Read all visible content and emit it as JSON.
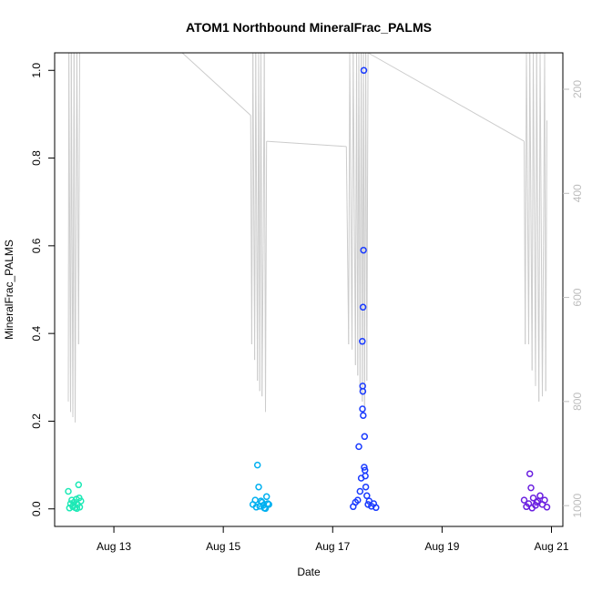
{
  "chart_data": {
    "type": "scatter",
    "title": "ATOM1 Northbound MineralFrac_PALMS",
    "xlabel": "Date",
    "ylabel": "MineralFrac_PALMS",
    "xlim": [
      "2016-08-11T22:00",
      "2016-08-21T05:00"
    ],
    "ylim": [
      -0.04,
      1.04
    ],
    "x_ticks": [
      {
        "value": "2016-08-13",
        "label": "Aug 13"
      },
      {
        "value": "2016-08-15",
        "label": "Aug 15"
      },
      {
        "value": "2016-08-17",
        "label": "Aug 17"
      },
      {
        "value": "2016-08-19",
        "label": "Aug 19"
      },
      {
        "value": "2016-08-21",
        "label": "Aug 21"
      }
    ],
    "y_ticks": [
      0.0,
      0.2,
      0.4,
      0.6,
      0.8,
      1.0
    ],
    "y_tick_labels": [
      "0.0",
      "0.2",
      "0.4",
      "0.6",
      "0.8",
      "1.0"
    ],
    "y2_axis": {
      "reversed": true,
      "ylim": [
        1040,
        130
      ],
      "ticks": [
        200,
        400,
        600,
        800,
        1000
      ],
      "tick_labels": [
        "200",
        "400",
        "600",
        "800",
        "1000"
      ],
      "color": "#bdbdbd"
    },
    "grid": false,
    "series": [
      {
        "color": "#1de9b6",
        "points": [
          [
            "2016-08-12T04:00",
            0.04
          ],
          [
            "2016-08-12T05:00",
            0.012
          ],
          [
            "2016-08-12T05:30",
            0.02
          ],
          [
            "2016-08-12T06:00",
            0.005
          ],
          [
            "2016-08-12T06:30",
            0.015
          ],
          [
            "2016-08-12T07:00",
            0.003
          ],
          [
            "2016-08-12T07:30",
            0.022
          ],
          [
            "2016-08-12T08:00",
            0.01
          ],
          [
            "2016-08-12T08:30",
            0.055
          ],
          [
            "2016-08-12T09:00",
            0.004
          ],
          [
            "2016-08-12T09:30",
            0.018
          ],
          [
            "2016-08-12T04:30",
            0.002
          ],
          [
            "2016-08-12T06:15",
            0.008
          ],
          [
            "2016-08-12T07:45",
            0.001
          ],
          [
            "2016-08-12T08:45",
            0.025
          ]
        ]
      },
      {
        "color": "#00b0f0",
        "points": [
          [
            "2016-08-15T13:00",
            0.01
          ],
          [
            "2016-08-15T14:00",
            0.02
          ],
          [
            "2016-08-15T15:00",
            0.1
          ],
          [
            "2016-08-15T15:30",
            0.05
          ],
          [
            "2016-08-15T16:00",
            0.006
          ],
          [
            "2016-08-15T17:00",
            0.015
          ],
          [
            "2016-08-15T18:00",
            0.002
          ],
          [
            "2016-08-15T19:00",
            0.028
          ],
          [
            "2016-08-15T20:00",
            0.01
          ],
          [
            "2016-08-15T14:30",
            0.004
          ],
          [
            "2016-08-15T16:30",
            0.018
          ],
          [
            "2016-08-15T17:30",
            0.008
          ],
          [
            "2016-08-15T18:30",
            0.001
          ],
          [
            "2016-08-15T19:30",
            0.012
          ]
        ]
      },
      {
        "color": "#1a3bff",
        "points": [
          [
            "2016-08-17T09:00",
            0.005
          ],
          [
            "2016-08-17T10:00",
            0.015
          ],
          [
            "2016-08-17T11:00",
            0.02
          ],
          [
            "2016-08-17T11:30",
            0.142
          ],
          [
            "2016-08-17T12:00",
            0.04
          ],
          [
            "2016-08-17T12:30",
            0.07
          ],
          [
            "2016-08-17T13:00",
            0.382
          ],
          [
            "2016-08-17T13:20",
            0.46
          ],
          [
            "2016-08-17T13:30",
            0.59
          ],
          [
            "2016-08-17T13:40",
            1.0
          ],
          [
            "2016-08-17T13:10",
            0.28
          ],
          [
            "2016-08-17T13:15",
            0.268
          ],
          [
            "2016-08-17T13:05",
            0.228
          ],
          [
            "2016-08-17T13:25",
            0.213
          ],
          [
            "2016-08-17T14:00",
            0.165
          ],
          [
            "2016-08-17T13:50",
            0.095
          ],
          [
            "2016-08-17T14:10",
            0.088
          ],
          [
            "2016-08-17T14:20",
            0.075
          ],
          [
            "2016-08-17T14:30",
            0.05
          ],
          [
            "2016-08-17T15:00",
            0.03
          ],
          [
            "2016-08-17T15:30",
            0.01
          ],
          [
            "2016-08-17T16:00",
            0.018
          ],
          [
            "2016-08-17T17:00",
            0.006
          ],
          [
            "2016-08-17T18:00",
            0.012
          ],
          [
            "2016-08-17T19:00",
            0.003
          ]
        ]
      },
      {
        "color": "#6a1fe0",
        "points": [
          [
            "2016-08-20T12:00",
            0.02
          ],
          [
            "2016-08-20T13:00",
            0.005
          ],
          [
            "2016-08-20T14:00",
            0.012
          ],
          [
            "2016-08-20T14:30",
            0.08
          ],
          [
            "2016-08-20T15:00",
            0.048
          ],
          [
            "2016-08-20T16:00",
            0.025
          ],
          [
            "2016-08-20T17:00",
            0.008
          ],
          [
            "2016-08-20T18:00",
            0.018
          ],
          [
            "2016-08-20T19:00",
            0.03
          ],
          [
            "2016-08-20T20:00",
            0.01
          ],
          [
            "2016-08-20T21:00",
            0.02
          ],
          [
            "2016-08-20T22:00",
            0.004
          ],
          [
            "2016-08-20T15:30",
            0.002
          ],
          [
            "2016-08-20T17:30",
            0.015
          ]
        ]
      }
    ],
    "altitude_trace": {
      "color": "#cccccc",
      "points": [
        [
          "2016-08-12T04:00",
          800
        ],
        [
          "2016-08-12T04:15",
          130
        ],
        [
          "2016-08-12T05:00",
          820
        ],
        [
          "2016-08-12T05:20",
          130
        ],
        [
          "2016-08-12T06:00",
          830
        ],
        [
          "2016-08-12T06:30",
          130
        ],
        [
          "2016-08-12T07:00",
          840
        ],
        [
          "2016-08-12T07:45",
          130
        ],
        [
          "2016-08-12T08:30",
          690
        ],
        [
          "2016-08-12T09:00",
          130
        ],
        [
          "2016-08-14T06:00",
          130
        ],
        [
          "2016-08-15T12:00",
          250
        ],
        [
          "2016-08-15T12:30",
          690
        ],
        [
          "2016-08-15T13:00",
          130
        ],
        [
          "2016-08-15T13:45",
          720
        ],
        [
          "2016-08-15T14:15",
          130
        ],
        [
          "2016-08-15T15:00",
          760
        ],
        [
          "2016-08-15T15:30",
          130
        ],
        [
          "2016-08-15T16:00",
          780
        ],
        [
          "2016-08-15T16:30",
          130
        ],
        [
          "2016-08-15T17:00",
          790
        ],
        [
          "2016-08-15T17:30",
          500
        ],
        [
          "2016-08-15T18:00",
          130
        ],
        [
          "2016-08-15T18:30",
          820
        ],
        [
          "2016-08-15T19:00",
          300
        ],
        [
          "2016-08-17T06:00",
          310
        ],
        [
          "2016-08-17T07:00",
          690
        ],
        [
          "2016-08-17T07:30",
          130
        ],
        [
          "2016-08-17T08:30",
          700
        ],
        [
          "2016-08-17T09:00",
          130
        ],
        [
          "2016-08-17T10:00",
          730
        ],
        [
          "2016-08-17T10:30",
          130
        ],
        [
          "2016-08-17T11:00",
          750
        ],
        [
          "2016-08-17T11:30",
          130
        ],
        [
          "2016-08-17T12:00",
          780
        ],
        [
          "2016-08-17T12:30",
          130
        ],
        [
          "2016-08-17T13:00",
          800
        ],
        [
          "2016-08-17T13:30",
          130
        ],
        [
          "2016-08-17T14:00",
          820
        ],
        [
          "2016-08-17T14:30",
          130
        ],
        [
          "2016-08-17T15:00",
          760
        ],
        [
          "2016-08-17T15:30",
          130
        ],
        [
          "2016-08-20T12:00",
          300
        ],
        [
          "2016-08-20T12:30",
          690
        ],
        [
          "2016-08-20T13:00",
          130
        ],
        [
          "2016-08-20T14:00",
          690
        ],
        [
          "2016-08-20T14:30",
          130
        ],
        [
          "2016-08-20T15:30",
          740
        ],
        [
          "2016-08-20T16:00",
          130
        ],
        [
          "2016-08-20T17:00",
          770
        ],
        [
          "2016-08-20T17:30",
          130
        ],
        [
          "2016-08-20T18:30",
          800
        ],
        [
          "2016-08-20T19:00",
          130
        ],
        [
          "2016-08-20T20:00",
          790
        ],
        [
          "2016-08-20T20:30",
          500
        ],
        [
          "2016-08-20T21:00",
          130
        ],
        [
          "2016-08-20T21:30",
          780
        ],
        [
          "2016-08-20T22:00",
          260
        ]
      ]
    }
  }
}
